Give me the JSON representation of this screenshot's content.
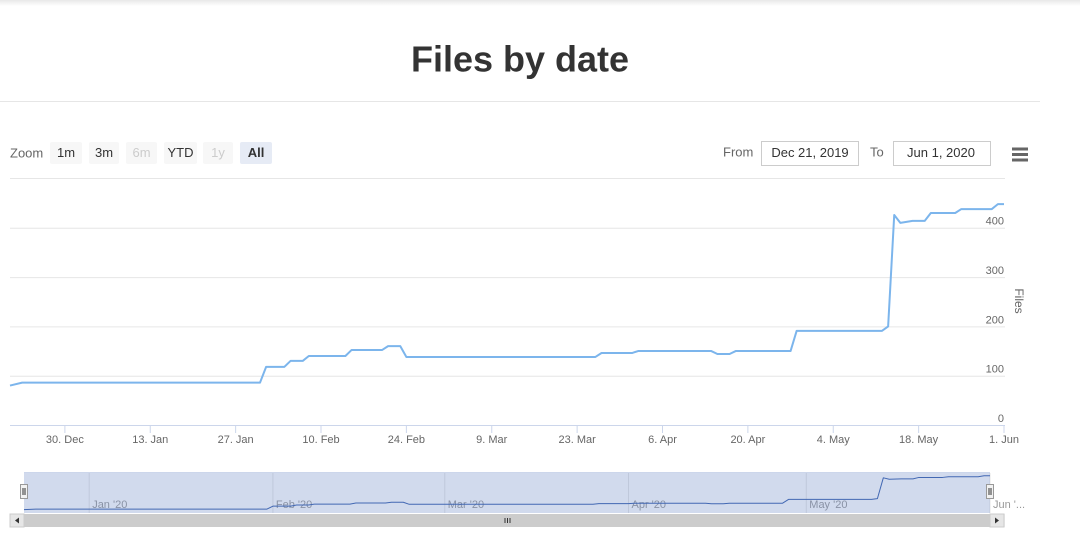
{
  "chart_data": {
    "type": "line",
    "title": "Files by date",
    "range_selector": {
      "label": "Zoom",
      "buttons": [
        {
          "text": "1m",
          "state": "normal"
        },
        {
          "text": "3m",
          "state": "normal"
        },
        {
          "text": "6m",
          "state": "disabled"
        },
        {
          "text": "YTD",
          "state": "normal"
        },
        {
          "text": "1y",
          "state": "disabled"
        },
        {
          "text": "All",
          "state": "selected"
        }
      ],
      "from_label": "From",
      "from": "Dec 21, 2019",
      "to_label": "To",
      "to": "Jun 1, 2020"
    },
    "y_axis_title": "Files",
    "color": "#7cb5ec",
    "navigator_color": "#335cad",
    "x": [
      "2019-12-21",
      "2019-12-23",
      "2020-01-31",
      "2020-02-01",
      "2020-02-04",
      "2020-02-05",
      "2020-02-07",
      "2020-02-08",
      "2020-02-14",
      "2020-02-15",
      "2020-02-20",
      "2020-02-21",
      "2020-02-23",
      "2020-02-24",
      "2020-03-26",
      "2020-03-27",
      "2020-04-01",
      "2020-04-02",
      "2020-04-14",
      "2020-04-15",
      "2020-04-17",
      "2020-04-18",
      "2020-04-27",
      "2020-04-28",
      "2020-05-12",
      "2020-05-13",
      "2020-05-14",
      "2020-05-15",
      "2020-05-17",
      "2020-05-19",
      "2020-05-20",
      "2020-05-24",
      "2020-05-25",
      "2020-05-30",
      "2020-05-31",
      "2020-06-01"
    ],
    "values": [
      80,
      86,
      86,
      118,
      118,
      130,
      130,
      140,
      140,
      152,
      152,
      160,
      160,
      138,
      138,
      146,
      146,
      150,
      150,
      144,
      144,
      150,
      150,
      191,
      191,
      200,
      426,
      410,
      414,
      414,
      430,
      430,
      438,
      438,
      448,
      448
    ],
    "xlim": [
      "2019-12-21",
      "2020-06-01"
    ],
    "xticks": [
      {
        "value": "2019-12-30",
        "label": "30. Dec"
      },
      {
        "value": "2020-01-13",
        "label": "13. Jan"
      },
      {
        "value": "2020-01-27",
        "label": "27. Jan"
      },
      {
        "value": "2020-02-10",
        "label": "10. Feb"
      },
      {
        "value": "2020-02-24",
        "label": "24. Feb"
      },
      {
        "value": "2020-03-09",
        "label": "9. Mar"
      },
      {
        "value": "2020-03-23",
        "label": "23. Mar"
      },
      {
        "value": "2020-04-06",
        "label": "6. Apr"
      },
      {
        "value": "2020-04-20",
        "label": "20. Apr"
      },
      {
        "value": "2020-05-04",
        "label": "4. May"
      },
      {
        "value": "2020-05-18",
        "label": "18. May"
      },
      {
        "value": "2020-06-01",
        "label": "1. Jun"
      }
    ],
    "ylim": [
      0,
      500
    ],
    "yticks": [
      0,
      100,
      200,
      300,
      400
    ],
    "grid": true,
    "navigator": {
      "ticks": [
        {
          "value": "2020-01-01",
          "label": "Jan '20"
        },
        {
          "value": "2020-02-01",
          "label": "Feb '20"
        },
        {
          "value": "2020-03-01",
          "label": "Mar '20"
        },
        {
          "value": "2020-04-01",
          "label": "Apr '20"
        },
        {
          "value": "2020-05-01",
          "label": "May '20"
        },
        {
          "value": "2020-06-01",
          "label": "Jun '..."
        }
      ]
    }
  }
}
